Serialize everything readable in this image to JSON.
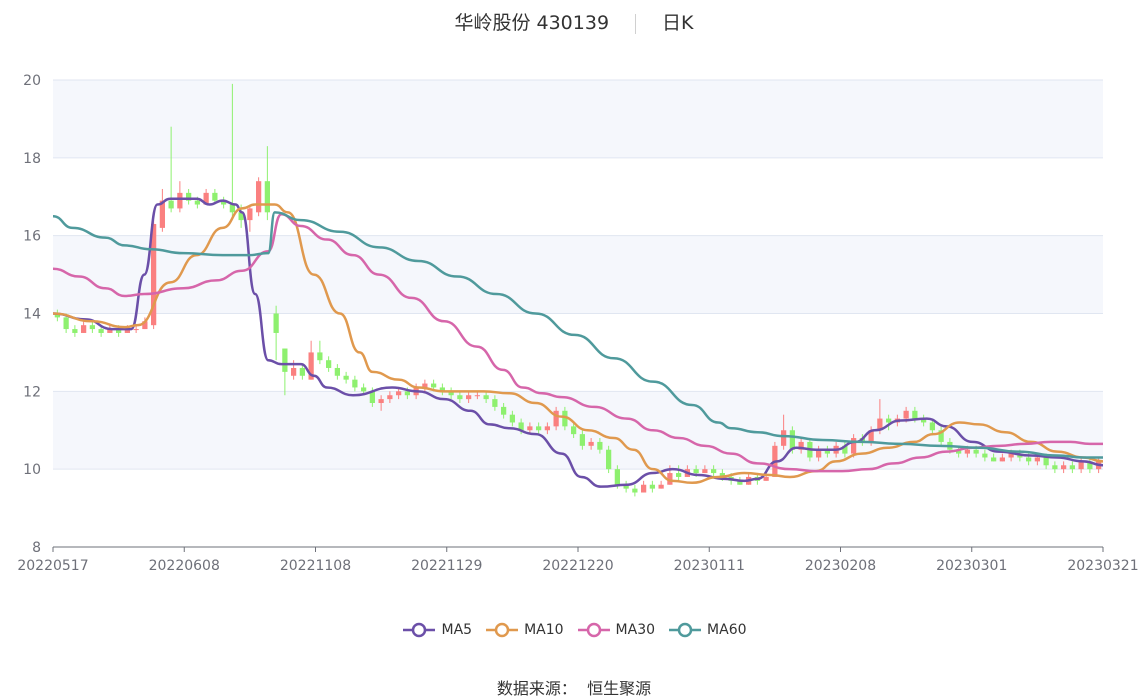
{
  "header": {
    "title": "华岭股份 430139",
    "period": "日K"
  },
  "source": {
    "label": "数据来源：",
    "value": "恒生聚源"
  },
  "legend": [
    {
      "name": "MA5",
      "color": "#6b4fa8"
    },
    {
      "name": "MA10",
      "color": "#e0994e"
    },
    {
      "name": "MA30",
      "color": "#d666aa"
    },
    {
      "name": "MA60",
      "color": "#4f9a9c"
    }
  ],
  "colors": {
    "up": "#fa8080",
    "down": "#8ef06f",
    "grid_band": "#f5f7fc",
    "grid_line": "#e0e6f1"
  },
  "chart_data": {
    "type": "candlestick",
    "ylim": [
      8,
      20
    ],
    "yticks": [
      8,
      10,
      12,
      14,
      16,
      18,
      20
    ],
    "xticks": [
      "20220517",
      "20220608",
      "20221108",
      "20221129",
      "20221220",
      "20230111",
      "20230208",
      "20230301",
      "20230321"
    ],
    "n_candles": 120,
    "candles": [
      [
        14.0,
        13.9,
        14.1,
        13.8
      ],
      [
        13.9,
        13.6,
        14.0,
        13.5
      ],
      [
        13.6,
        13.5,
        13.7,
        13.4
      ],
      [
        13.5,
        13.7,
        13.8,
        13.5
      ],
      [
        13.7,
        13.6,
        13.8,
        13.5
      ],
      [
        13.6,
        13.5,
        13.7,
        13.4
      ],
      [
        13.5,
        13.6,
        13.7,
        13.5
      ],
      [
        13.6,
        13.5,
        13.7,
        13.4
      ],
      [
        13.5,
        13.6,
        13.7,
        13.5
      ],
      [
        13.6,
        13.6,
        13.7,
        13.5
      ],
      [
        13.6,
        13.8,
        13.9,
        13.6
      ],
      [
        13.7,
        16.3,
        16.4,
        13.6
      ],
      [
        16.2,
        16.9,
        17.2,
        16.1
      ],
      [
        16.9,
        16.7,
        18.8,
        16.6
      ],
      [
        16.7,
        17.1,
        17.4,
        16.6
      ],
      [
        17.1,
        16.9,
        17.2,
        16.8
      ],
      [
        16.9,
        16.8,
        17.0,
        16.7
      ],
      [
        16.8,
        17.1,
        17.2,
        16.8
      ],
      [
        17.1,
        16.9,
        17.2,
        16.8
      ],
      [
        16.9,
        16.8,
        17.0,
        16.7
      ],
      [
        16.8,
        16.6,
        19.9,
        16.5
      ],
      [
        16.6,
        16.4,
        16.8,
        16.2
      ],
      [
        16.4,
        16.7,
        16.8,
        16.1
      ],
      [
        16.6,
        17.4,
        17.5,
        16.5
      ],
      [
        17.4,
        16.6,
        18.3,
        16.4
      ],
      [
        14.0,
        13.5,
        14.2,
        12.8
      ],
      [
        13.1,
        12.5,
        13.1,
        11.9
      ],
      [
        12.4,
        12.6,
        12.8,
        12.3
      ],
      [
        12.6,
        12.4,
        12.7,
        12.3
      ],
      [
        12.3,
        13.0,
        13.3,
        12.3
      ],
      [
        13.0,
        12.8,
        13.3,
        12.7
      ],
      [
        12.8,
        12.6,
        12.9,
        12.5
      ],
      [
        12.6,
        12.4,
        12.7,
        12.3
      ],
      [
        12.4,
        12.3,
        12.5,
        12.2
      ],
      [
        12.3,
        12.1,
        12.4,
        12.0
      ],
      [
        12.1,
        12.0,
        12.2,
        11.9
      ],
      [
        12.0,
        11.7,
        12.1,
        11.6
      ],
      [
        11.7,
        11.8,
        11.9,
        11.5
      ],
      [
        11.8,
        11.9,
        12.0,
        11.7
      ],
      [
        11.9,
        12.0,
        12.1,
        11.8
      ],
      [
        12.0,
        11.9,
        12.1,
        11.8
      ],
      [
        11.9,
        12.1,
        12.2,
        11.8
      ],
      [
        12.1,
        12.2,
        12.3,
        12.0
      ],
      [
        12.2,
        12.1,
        12.3,
        12.0
      ],
      [
        12.1,
        12.0,
        12.2,
        11.9
      ],
      [
        12.0,
        11.9,
        12.1,
        11.8
      ],
      [
        11.9,
        11.8,
        12.0,
        11.7
      ],
      [
        11.8,
        11.9,
        12.0,
        11.7
      ],
      [
        11.9,
        11.9,
        12.0,
        11.8
      ],
      [
        11.9,
        11.8,
        12.0,
        11.7
      ],
      [
        11.8,
        11.6,
        11.9,
        11.5
      ],
      [
        11.6,
        11.4,
        11.7,
        11.3
      ],
      [
        11.4,
        11.2,
        11.5,
        11.1
      ],
      [
        11.2,
        11.0,
        11.3,
        10.9
      ],
      [
        11.0,
        11.1,
        11.2,
        10.9
      ],
      [
        11.1,
        11.0,
        11.2,
        10.9
      ],
      [
        11.0,
        11.1,
        11.2,
        10.9
      ],
      [
        11.1,
        11.5,
        11.6,
        11.0
      ],
      [
        11.5,
        11.1,
        11.6,
        11.0
      ],
      [
        11.1,
        10.9,
        11.2,
        10.8
      ],
      [
        10.9,
        10.6,
        11.0,
        10.5
      ],
      [
        10.6,
        10.7,
        10.8,
        10.5
      ],
      [
        10.7,
        10.5,
        10.8,
        10.4
      ],
      [
        10.5,
        10.0,
        10.6,
        9.9
      ],
      [
        10.0,
        9.6,
        10.1,
        9.5
      ],
      [
        9.6,
        9.5,
        9.7,
        9.4
      ],
      [
        9.5,
        9.4,
        9.6,
        9.3
      ],
      [
        9.4,
        9.6,
        9.7,
        9.4
      ],
      [
        9.6,
        9.5,
        9.7,
        9.4
      ],
      [
        9.5,
        9.6,
        9.7,
        9.5
      ],
      [
        9.6,
        9.9,
        10.1,
        9.6
      ],
      [
        9.9,
        9.8,
        10.1,
        9.7
      ],
      [
        9.8,
        10.0,
        10.1,
        9.8
      ],
      [
        10.0,
        9.9,
        10.1,
        9.8
      ],
      [
        9.9,
        10.0,
        10.1,
        9.9
      ],
      [
        10.0,
        9.9,
        10.1,
        9.8
      ],
      [
        9.9,
        9.8,
        10.0,
        9.7
      ],
      [
        9.8,
        9.7,
        9.9,
        9.6
      ],
      [
        9.7,
        9.6,
        9.8,
        9.6
      ],
      [
        9.6,
        9.8,
        9.9,
        9.6
      ],
      [
        9.8,
        9.7,
        9.9,
        9.6
      ],
      [
        9.7,
        9.8,
        9.9,
        9.7
      ],
      [
        9.8,
        10.6,
        10.7,
        9.8
      ],
      [
        10.6,
        11.0,
        11.4,
        10.5
      ],
      [
        11.0,
        10.5,
        11.1,
        10.4
      ],
      [
        10.5,
        10.7,
        10.8,
        10.4
      ],
      [
        10.7,
        10.3,
        10.8,
        10.2
      ],
      [
        10.3,
        10.5,
        10.6,
        10.2
      ],
      [
        10.5,
        10.4,
        10.6,
        10.3
      ],
      [
        10.4,
        10.6,
        10.7,
        10.3
      ],
      [
        10.6,
        10.4,
        10.7,
        10.3
      ],
      [
        10.4,
        10.8,
        10.9,
        10.3
      ],
      [
        10.8,
        10.7,
        10.9,
        10.6
      ],
      [
        10.7,
        11.0,
        11.1,
        10.6
      ],
      [
        11.0,
        11.3,
        11.8,
        10.9
      ],
      [
        11.3,
        11.2,
        11.4,
        11.0
      ],
      [
        11.2,
        11.3,
        11.4,
        11.1
      ],
      [
        11.3,
        11.5,
        11.6,
        11.2
      ],
      [
        11.5,
        11.3,
        11.6,
        11.2
      ],
      [
        11.3,
        11.2,
        11.4,
        11.1
      ],
      [
        11.2,
        11.0,
        11.3,
        10.9
      ],
      [
        11.0,
        10.7,
        11.1,
        10.6
      ],
      [
        10.7,
        10.5,
        10.8,
        10.4
      ],
      [
        10.5,
        10.4,
        10.6,
        10.3
      ],
      [
        10.4,
        10.5,
        10.6,
        10.3
      ],
      [
        10.5,
        10.4,
        10.6,
        10.3
      ],
      [
        10.4,
        10.3,
        10.5,
        10.2
      ],
      [
        10.3,
        10.2,
        10.4,
        10.2
      ],
      [
        10.2,
        10.3,
        10.4,
        10.2
      ],
      [
        10.3,
        10.4,
        10.5,
        10.2
      ],
      [
        10.4,
        10.3,
        10.5,
        10.2
      ],
      [
        10.3,
        10.2,
        10.4,
        10.1
      ],
      [
        10.2,
        10.3,
        10.4,
        10.1
      ],
      [
        10.3,
        10.1,
        10.4,
        10.0
      ],
      [
        10.1,
        10.0,
        10.2,
        9.9
      ],
      [
        10.0,
        10.1,
        10.2,
        9.9
      ],
      [
        10.1,
        10.0,
        10.2,
        9.9
      ],
      [
        10.0,
        10.2,
        10.3,
        9.9
      ],
      [
        10.2,
        10.0,
        10.3,
        9.9
      ],
      [
        10.0,
        10.2,
        10.3,
        9.9
      ]
    ],
    "ma_lines": {
      "MA5": [
        [
          0,
          14.0
        ],
        [
          5,
          13.85
        ],
        [
          9,
          13.6
        ],
        [
          12,
          13.6
        ],
        [
          14,
          15.0
        ],
        [
          16,
          16.8
        ],
        [
          18,
          16.95
        ],
        [
          22,
          16.95
        ],
        [
          24,
          16.8
        ],
        [
          26,
          16.9
        ],
        [
          28,
          16.8
        ],
        [
          29,
          16.6
        ],
        [
          31,
          14.5
        ],
        [
          33,
          12.8
        ],
        [
          35,
          12.7
        ],
        [
          38,
          12.7
        ],
        [
          40,
          12.4
        ],
        [
          42,
          12.1
        ],
        [
          46,
          11.9
        ],
        [
          52,
          12.1
        ],
        [
          56,
          12.0
        ],
        [
          60,
          11.8
        ],
        [
          64,
          11.5
        ],
        [
          67,
          11.15
        ],
        [
          70,
          11.05
        ],
        [
          74,
          10.9
        ],
        [
          78,
          10.4
        ],
        [
          81,
          9.8
        ],
        [
          84,
          9.55
        ],
        [
          88,
          9.6
        ],
        [
          92,
          9.9
        ],
        [
          95,
          10.0
        ],
        [
          99,
          9.85
        ],
        [
          103,
          9.75
        ],
        [
          106,
          9.7
        ],
        [
          108,
          9.75
        ],
        [
          111,
          10.2
        ],
        [
          114,
          10.55
        ],
        [
          117,
          10.5
        ],
        [
          120,
          10.5
        ],
        [
          123,
          10.7
        ],
        [
          126,
          11.0
        ],
        [
          130,
          11.25
        ],
        [
          134,
          11.3
        ],
        [
          137,
          11.1
        ],
        [
          141,
          10.7
        ],
        [
          145,
          10.45
        ],
        [
          150,
          10.35
        ],
        [
          154,
          10.3
        ],
        [
          158,
          10.2
        ],
        [
          161,
          10.1
        ]
      ],
      "MA10": [
        [
          0,
          14.0
        ],
        [
          6,
          13.8
        ],
        [
          11,
          13.65
        ],
        [
          13,
          13.7
        ],
        [
          18,
          14.8
        ],
        [
          22,
          15.5
        ],
        [
          26,
          16.2
        ],
        [
          29,
          16.7
        ],
        [
          31,
          16.8
        ],
        [
          34,
          16.8
        ],
        [
          36,
          16.6
        ],
        [
          40,
          15.0
        ],
        [
          44,
          14.0
        ],
        [
          47,
          13.0
        ],
        [
          49,
          12.5
        ],
        [
          53,
          12.3
        ],
        [
          56,
          12.1
        ],
        [
          60,
          12.0
        ],
        [
          66,
          12.0
        ],
        [
          70,
          11.95
        ],
        [
          74,
          11.7
        ],
        [
          78,
          11.35
        ],
        [
          82,
          11.0
        ],
        [
          86,
          10.8
        ],
        [
          89,
          10.5
        ],
        [
          92,
          10.0
        ],
        [
          95,
          9.7
        ],
        [
          98,
          9.65
        ],
        [
          102,
          9.8
        ],
        [
          106,
          9.9
        ],
        [
          110,
          9.85
        ],
        [
          113,
          9.8
        ],
        [
          117,
          9.95
        ],
        [
          120,
          10.2
        ],
        [
          124,
          10.4
        ],
        [
          128,
          10.55
        ],
        [
          132,
          10.7
        ],
        [
          135,
          10.9
        ],
        [
          139,
          11.2
        ],
        [
          142,
          11.15
        ],
        [
          146,
          10.95
        ],
        [
          150,
          10.7
        ],
        [
          154,
          10.45
        ],
        [
          158,
          10.3
        ],
        [
          161,
          10.2
        ]
      ],
      "MA30": [
        [
          0,
          15.15
        ],
        [
          4,
          14.95
        ],
        [
          8,
          14.65
        ],
        [
          11,
          14.45
        ],
        [
          14,
          14.5
        ],
        [
          20,
          14.65
        ],
        [
          25,
          14.85
        ],
        [
          29,
          15.1
        ],
        [
          33,
          15.6
        ],
        [
          35,
          16.55
        ],
        [
          38,
          16.25
        ],
        [
          42,
          15.9
        ],
        [
          46,
          15.5
        ],
        [
          50,
          15.0
        ],
        [
          55,
          14.4
        ],
        [
          60,
          13.8
        ],
        [
          65,
          13.15
        ],
        [
          69,
          12.55
        ],
        [
          72,
          12.1
        ],
        [
          75,
          11.95
        ],
        [
          78,
          11.85
        ],
        [
          83,
          11.6
        ],
        [
          88,
          11.3
        ],
        [
          92,
          11.0
        ],
        [
          96,
          10.8
        ],
        [
          100,
          10.6
        ],
        [
          104,
          10.4
        ],
        [
          108,
          10.15
        ],
        [
          113,
          10.0
        ],
        [
          117,
          9.95
        ],
        [
          121,
          9.95
        ],
        [
          125,
          10.0
        ],
        [
          129,
          10.15
        ],
        [
          133,
          10.3
        ],
        [
          137,
          10.45
        ],
        [
          141,
          10.55
        ],
        [
          145,
          10.6
        ],
        [
          149,
          10.65
        ],
        [
          153,
          10.7
        ],
        [
          156,
          10.7
        ],
        [
          159,
          10.65
        ],
        [
          161,
          10.65
        ]
      ],
      "MA60": [
        [
          0,
          16.5
        ],
        [
          3,
          16.2
        ],
        [
          8,
          15.95
        ],
        [
          11,
          15.75
        ],
        [
          15,
          15.65
        ],
        [
          20,
          15.55
        ],
        [
          26,
          15.5
        ],
        [
          30,
          15.5
        ],
        [
          33,
          15.55
        ],
        [
          34,
          16.6
        ],
        [
          38,
          16.4
        ],
        [
          44,
          16.1
        ],
        [
          50,
          15.7
        ],
        [
          56,
          15.35
        ],
        [
          62,
          14.95
        ],
        [
          68,
          14.5
        ],
        [
          74,
          14.0
        ],
        [
          80,
          13.45
        ],
        [
          86,
          12.85
        ],
        [
          92,
          12.25
        ],
        [
          98,
          11.65
        ],
        [
          102,
          11.2
        ],
        [
          104,
          11.05
        ],
        [
          108,
          10.95
        ],
        [
          112,
          10.85
        ],
        [
          118,
          10.75
        ],
        [
          124,
          10.7
        ],
        [
          130,
          10.65
        ],
        [
          136,
          10.6
        ],
        [
          142,
          10.55
        ],
        [
          148,
          10.45
        ],
        [
          154,
          10.35
        ],
        [
          158,
          10.3
        ],
        [
          161,
          10.3
        ]
      ]
    }
  }
}
